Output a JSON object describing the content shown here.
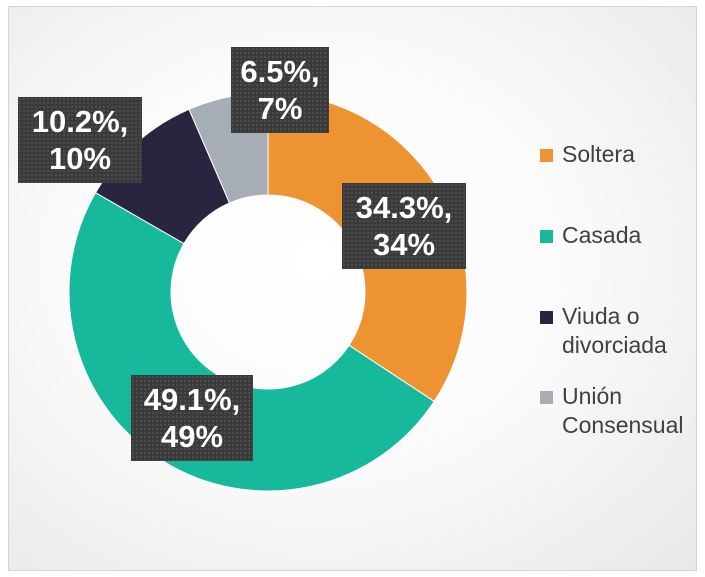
{
  "chart_data": {
    "type": "pie",
    "donut": true,
    "title": "",
    "categories": [
      "Soltera",
      "Casada",
      "Viuda o divorciada",
      "Unión Consensual"
    ],
    "values": [
      34.3,
      49.1,
      10.2,
      6.5
    ],
    "data_labels": [
      [
        "34.3%,",
        "34%"
      ],
      [
        "49.1%,",
        "49%"
      ],
      [
        "10.2%,",
        "10%"
      ],
      [
        "6.5%,",
        "7%"
      ]
    ],
    "legend": {
      "position": "right",
      "entries": [
        [
          "Soltera"
        ],
        [
          "Casada"
        ],
        [
          "Viuda o",
          "divorciada"
        ],
        [
          "Unión",
          "Consensual"
        ]
      ]
    },
    "colors": [
      "#ed9332",
      "#16b99c",
      "#29243f",
      "#a6adb5"
    ]
  }
}
